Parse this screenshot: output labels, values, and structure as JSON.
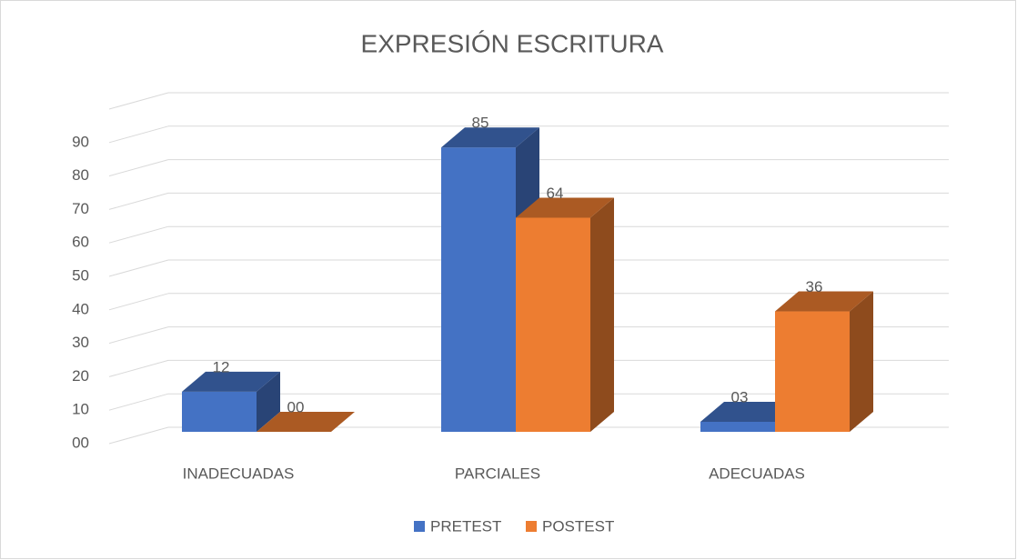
{
  "chart_data": {
    "type": "bar3d",
    "title": "EXPRESIÓN ESCRITURA",
    "categories": [
      "INADECUADAS",
      "PARCIALES",
      "ADECUADAS"
    ],
    "series": [
      {
        "name": "PRETEST",
        "color": "#4472c4",
        "values": [
          12,
          85,
          3
        ],
        "value_labels": [
          "12",
          "85",
          "03"
        ]
      },
      {
        "name": "POSTEST",
        "color": "#ed7d31",
        "values": [
          0,
          64,
          36
        ],
        "value_labels": [
          "00",
          "64",
          "36"
        ]
      }
    ],
    "ylim": [
      0,
      100
    ],
    "yticks": [
      {
        "value": 0,
        "label": "00"
      },
      10,
      20,
      30,
      40,
      50,
      60,
      70,
      80,
      90
    ],
    "grid": true,
    "legend": "bottom"
  }
}
